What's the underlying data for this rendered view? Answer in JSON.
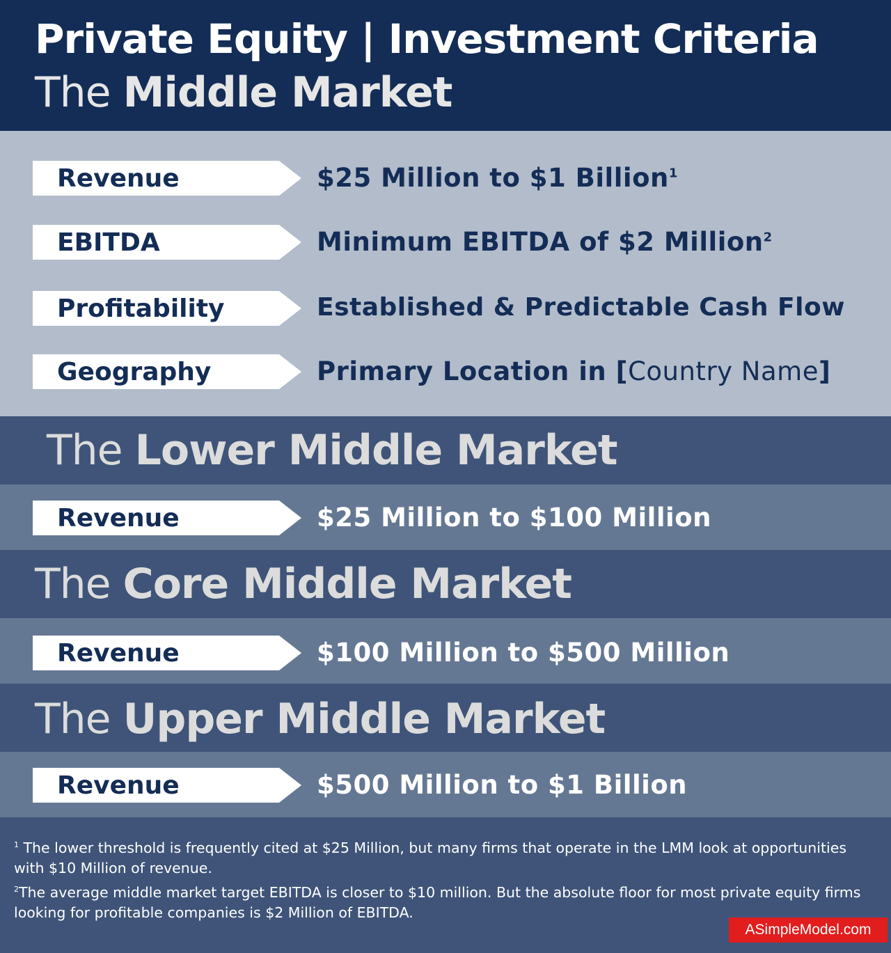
{
  "header": {
    "line1": "Private Equity  |  Investment Criteria",
    "line2_prefix": "The ",
    "line2_strong": "Middle Market"
  },
  "middle_market": {
    "criteria": [
      {
        "label": "Revenue",
        "value": "$25 Million to $1 Billion",
        "sup": "1"
      },
      {
        "label": "EBITDA",
        "value": "Minimum EBITDA of $2 Million",
        "sup": "2"
      },
      {
        "label": "Profitability",
        "value": "Established & Predictable Cash Flow"
      },
      {
        "label": "Geography",
        "value_prefix": "Primary Location in ",
        "bracket_open": "[",
        "placeholder": "Country Name",
        "bracket_close": "]"
      }
    ]
  },
  "lower_middle_market": {
    "prefix": "The ",
    "strong": "Lower Middle Market",
    "label": "Revenue",
    "value": "$25 Million to $100 Million"
  },
  "core_middle_market": {
    "prefix": "The ",
    "strong": "Core Middle Market",
    "label": "Revenue",
    "value": "$100 Million to $500 Million"
  },
  "upper_middle_market": {
    "prefix": "The ",
    "strong": "Upper Middle Market",
    "label": "Revenue",
    "value": "$500 Million to $1 Billion"
  },
  "footnotes": [
    {
      "mark": "1",
      "text": " The lower threshold is frequently cited at $25 Million, but many firms that operate in the LMM look at opportunities with $10 Million of revenue."
    },
    {
      "mark": "2",
      "text": "The average middle market target EBITDA is closer to $10 million. But the absolute floor for most private equity firms looking for profitable companies is $2 Million of EBITDA."
    }
  ],
  "brand": "ASimpleModel.com",
  "colors": {
    "navy": "#142d56",
    "slate_band": "#3f5478",
    "steel_band": "#657893",
    "light_panel": "#b2bccb",
    "brand_red": "#e21d1d"
  }
}
